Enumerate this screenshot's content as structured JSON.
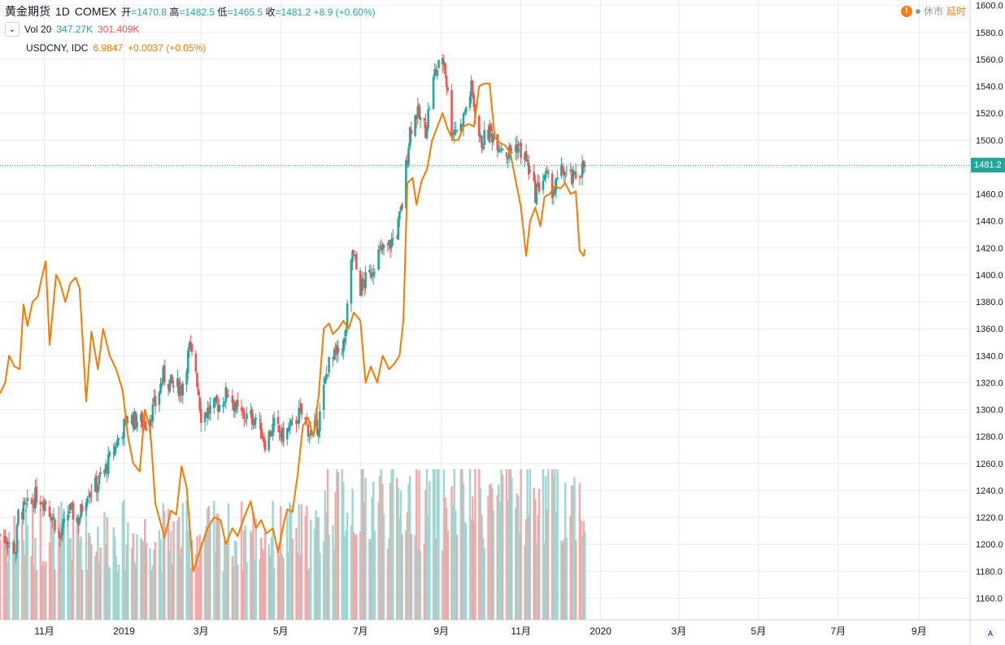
{
  "header": {
    "symbol": "黄金期货",
    "interval": "1D",
    "exchange": "COMEX",
    "open_label": "开",
    "open": "=1470.8",
    "high_label": "高",
    "high": "=1482.5",
    "low_label": "低",
    "low": "=1465.5",
    "close_label": "收",
    "close": "=1481.2",
    "change": "+8.9 (+0.60%)"
  },
  "vol_legend": {
    "collapse_icon": "chevron-down-icon",
    "label": "Vol 20",
    "value1": "347.27K",
    "value2": "301.409K"
  },
  "compare_legend": {
    "label": "USDCNY, IDC",
    "value": "6.9847",
    "change": "+0.0037 (+0.05%)"
  },
  "status": {
    "icon_text": "!",
    "market": "休市",
    "delay": "延时"
  },
  "last_price": "1481.2",
  "auto_scale": "A",
  "colors": {
    "up": "#26a69a",
    "down": "#ef5350",
    "vol_up": "#9ed6d1",
    "vol_down": "#f5a7a7",
    "compare": "#f57c00",
    "grid": "#e8ebf0",
    "axis_text": "#131722",
    "status": "#f57f17"
  },
  "chart_data": {
    "type": "candlestick",
    "title": "",
    "start_date": "2018-09-28",
    "y_axis_ticks": [
      1160,
      1180,
      1200,
      1220,
      1240,
      1260,
      1280,
      1300,
      1320,
      1340,
      1360,
      1380,
      1400,
      1420,
      1440,
      1460,
      1480,
      1500,
      1520,
      1540,
      1560,
      1580,
      1600
    ],
    "ylim": [
      1144,
      1604
    ],
    "x_axis_ticks": [
      "11月",
      "2019",
      "3月",
      "5月",
      "7月",
      "9月",
      "11月",
      "2020",
      "3月",
      "5月",
      "7月",
      "9月"
    ],
    "x_axis_tick_dates": [
      "2018-11-01",
      "2019-01-01",
      "2019-03-01",
      "2019-05-01",
      "2019-07-01",
      "2019-09-01",
      "2019-11-01",
      "2020-01-01",
      "2020-03-01",
      "2020-05-01",
      "2020-07-01",
      "2020-09-01"
    ],
    "xlim": [
      "2018-09-28",
      "2020-10-10"
    ],
    "gold_close_anchors": [
      [
        "2018-09-28",
        1207
      ],
      [
        "2018-10-04",
        1203
      ],
      [
        "2018-10-10",
        1196
      ],
      [
        "2018-10-12",
        1222
      ],
      [
        "2018-10-19",
        1228
      ],
      [
        "2018-10-26",
        1236
      ],
      [
        "2018-11-02",
        1232
      ],
      [
        "2018-11-09",
        1216
      ],
      [
        "2018-11-13",
        1204
      ],
      [
        "2018-11-20",
        1226
      ],
      [
        "2018-11-27",
        1218
      ],
      [
        "2018-12-04",
        1240
      ],
      [
        "2018-12-11",
        1244
      ],
      [
        "2018-12-18",
        1256
      ],
      [
        "2018-12-24",
        1270
      ],
      [
        "2018-12-31",
        1286
      ],
      [
        "2019-01-04",
        1294
      ],
      [
        "2019-01-11",
        1292
      ],
      [
        "2019-01-18",
        1290
      ],
      [
        "2019-01-25",
        1304
      ],
      [
        "2019-01-31",
        1325
      ],
      [
        "2019-02-07",
        1318
      ],
      [
        "2019-02-14",
        1316
      ],
      [
        "2019-02-20",
        1345
      ],
      [
        "2019-02-25",
        1330
      ],
      [
        "2019-03-01",
        1296
      ],
      [
        "2019-03-08",
        1300
      ],
      [
        "2019-03-15",
        1304
      ],
      [
        "2019-03-22",
        1314
      ],
      [
        "2019-03-29",
        1298
      ],
      [
        "2019-04-05",
        1294
      ],
      [
        "2019-04-12",
        1294
      ],
      [
        "2019-04-19",
        1276
      ],
      [
        "2019-04-26",
        1288
      ],
      [
        "2019-05-02",
        1280
      ],
      [
        "2019-05-10",
        1288
      ],
      [
        "2019-05-16",
        1298
      ],
      [
        "2019-05-24",
        1282
      ],
      [
        "2019-05-30",
        1290
      ],
      [
        "2019-06-06",
        1332
      ],
      [
        "2019-06-12",
        1340
      ],
      [
        "2019-06-19",
        1350
      ],
      [
        "2019-06-25",
        1418
      ],
      [
        "2019-07-01",
        1390
      ],
      [
        "2019-07-08",
        1400
      ],
      [
        "2019-07-15",
        1416
      ],
      [
        "2019-07-22",
        1420
      ],
      [
        "2019-07-29",
        1432
      ],
      [
        "2019-08-02",
        1452
      ],
      [
        "2019-08-08",
        1508
      ],
      [
        "2019-08-13",
        1520
      ],
      [
        "2019-08-20",
        1508
      ],
      [
        "2019-08-27",
        1550
      ],
      [
        "2019-09-03",
        1560
      ],
      [
        "2019-09-09",
        1508
      ],
      [
        "2019-09-16",
        1510
      ],
      [
        "2019-09-24",
        1538
      ],
      [
        "2019-10-01",
        1498
      ],
      [
        "2019-10-08",
        1506
      ],
      [
        "2019-10-15",
        1498
      ],
      [
        "2019-10-22",
        1490
      ],
      [
        "2019-10-29",
        1496
      ],
      [
        "2019-11-05",
        1485
      ],
      [
        "2019-11-12",
        1460
      ],
      [
        "2019-11-19",
        1474
      ],
      [
        "2019-11-26",
        1462
      ],
      [
        "2019-12-03",
        1478
      ],
      [
        "2019-12-10",
        1470
      ],
      [
        "2019-12-17",
        1478
      ],
      [
        "2019-12-20",
        1481.2
      ]
    ],
    "gold_high_max": 1566,
    "gold_low_min": 1196,
    "volume_ylim_fraction_top": 0.27,
    "usdcny_series_name": "USDCNY, IDC",
    "usdcny_last": 6.9847,
    "usdcny_points_price_scale": [
      [
        "2018-09-28",
        1312
      ],
      [
        "2018-10-02",
        1320
      ],
      [
        "2018-10-05",
        1340
      ],
      [
        "2018-10-09",
        1332
      ],
      [
        "2018-10-13",
        1330
      ],
      [
        "2018-10-16",
        1378
      ],
      [
        "2018-10-19",
        1362
      ],
      [
        "2018-10-23",
        1380
      ],
      [
        "2018-10-27",
        1384
      ],
      [
        "2018-10-30",
        1398
      ],
      [
        "2018-11-02",
        1410
      ],
      [
        "2018-11-05",
        1348
      ],
      [
        "2018-11-10",
        1400
      ],
      [
        "2018-11-13",
        1394
      ],
      [
        "2018-11-17",
        1380
      ],
      [
        "2018-11-21",
        1394
      ],
      [
        "2018-11-25",
        1398
      ],
      [
        "2018-11-28",
        1390
      ],
      [
        "2018-12-03",
        1306
      ],
      [
        "2018-12-07",
        1358
      ],
      [
        "2018-12-12",
        1330
      ],
      [
        "2018-12-16",
        1360
      ],
      [
        "2018-12-21",
        1340
      ],
      [
        "2018-12-26",
        1330
      ],
      [
        "2018-12-31",
        1314
      ],
      [
        "2019-01-04",
        1280
      ],
      [
        "2019-01-08",
        1260
      ],
      [
        "2019-01-13",
        1254
      ],
      [
        "2019-01-17",
        1300
      ],
      [
        "2019-01-21",
        1286
      ],
      [
        "2019-01-25",
        1230
      ],
      [
        "2019-02-01",
        1205
      ],
      [
        "2019-02-06",
        1225
      ],
      [
        "2019-02-10",
        1222
      ],
      [
        "2019-02-14",
        1258
      ],
      [
        "2019-02-18",
        1242
      ],
      [
        "2019-02-23",
        1180
      ],
      [
        "2019-03-01",
        1198
      ],
      [
        "2019-03-06",
        1212
      ],
      [
        "2019-03-11",
        1220
      ],
      [
        "2019-03-16",
        1218
      ],
      [
        "2019-03-20",
        1200
      ],
      [
        "2019-03-25",
        1212
      ],
      [
        "2019-03-29",
        1206
      ],
      [
        "2019-04-03",
        1220
      ],
      [
        "2019-04-08",
        1232
      ],
      [
        "2019-04-12",
        1212
      ],
      [
        "2019-04-16",
        1218
      ],
      [
        "2019-04-20",
        1208
      ],
      [
        "2019-04-25",
        1212
      ],
      [
        "2019-04-29",
        1194
      ],
      [
        "2019-05-03",
        1214
      ],
      [
        "2019-05-06",
        1226
      ],
      [
        "2019-05-10",
        1224
      ],
      [
        "2019-05-14",
        1252
      ],
      [
        "2019-05-18",
        1288
      ],
      [
        "2019-05-22",
        1294
      ],
      [
        "2019-05-26",
        1280
      ],
      [
        "2019-05-30",
        1310
      ],
      [
        "2019-06-03",
        1360
      ],
      [
        "2019-06-07",
        1364
      ],
      [
        "2019-06-10",
        1356
      ],
      [
        "2019-06-14",
        1360
      ],
      [
        "2019-06-18",
        1366
      ],
      [
        "2019-06-22",
        1360
      ],
      [
        "2019-06-26",
        1372
      ],
      [
        "2019-07-01",
        1366
      ],
      [
        "2019-07-05",
        1320
      ],
      [
        "2019-07-09",
        1332
      ],
      [
        "2019-07-14",
        1320
      ],
      [
        "2019-07-18",
        1340
      ],
      [
        "2019-07-23",
        1330
      ],
      [
        "2019-07-27",
        1334
      ],
      [
        "2019-07-31",
        1340
      ],
      [
        "2019-08-03",
        1366
      ],
      [
        "2019-08-06",
        1468
      ],
      [
        "2019-08-10",
        1472
      ],
      [
        "2019-08-13",
        1452
      ],
      [
        "2019-08-17",
        1470
      ],
      [
        "2019-08-21",
        1478
      ],
      [
        "2019-08-25",
        1500
      ],
      [
        "2019-08-29",
        1510
      ],
      [
        "2019-09-02",
        1520
      ],
      [
        "2019-09-06",
        1508
      ],
      [
        "2019-09-10",
        1500
      ],
      [
        "2019-09-14",
        1500
      ],
      [
        "2019-09-18",
        1510
      ],
      [
        "2019-09-22",
        1512
      ],
      [
        "2019-09-26",
        1510
      ],
      [
        "2019-09-30",
        1540
      ],
      [
        "2019-10-04",
        1542
      ],
      [
        "2019-10-08",
        1542
      ],
      [
        "2019-10-12",
        1502
      ],
      [
        "2019-10-16",
        1498
      ],
      [
        "2019-10-20",
        1496
      ],
      [
        "2019-10-24",
        1490
      ],
      [
        "2019-10-28",
        1470
      ],
      [
        "2019-11-01",
        1450
      ],
      [
        "2019-11-05",
        1414
      ],
      [
        "2019-11-08",
        1440
      ],
      [
        "2019-11-12",
        1450
      ],
      [
        "2019-11-16",
        1436
      ],
      [
        "2019-11-19",
        1458
      ],
      [
        "2019-11-23",
        1460
      ],
      [
        "2019-11-27",
        1466
      ],
      [
        "2019-12-01",
        1464
      ],
      [
        "2019-12-05",
        1468
      ],
      [
        "2019-12-09",
        1460
      ],
      [
        "2019-12-13",
        1462
      ],
      [
        "2019-12-16",
        1418
      ],
      [
        "2019-12-19",
        1414
      ],
      [
        "2019-12-20",
        1419
      ]
    ]
  }
}
